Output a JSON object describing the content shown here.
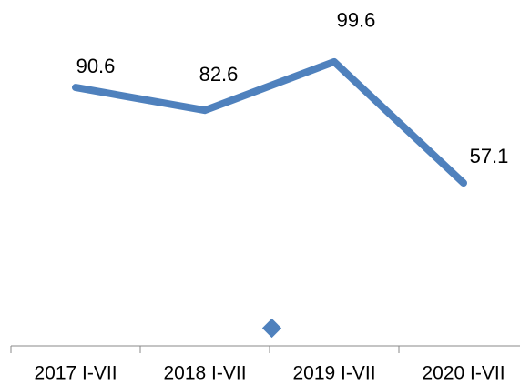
{
  "chart_data": {
    "type": "line",
    "categories": [
      "2017 I-VII",
      "2018 I-VII",
      "2019 I-VII",
      "2020 I-VII"
    ],
    "values": [
      90.6,
      82.6,
      99.6,
      57.1
    ],
    "color": "#4f81bd",
    "ylim": [
      0,
      120
    ]
  }
}
